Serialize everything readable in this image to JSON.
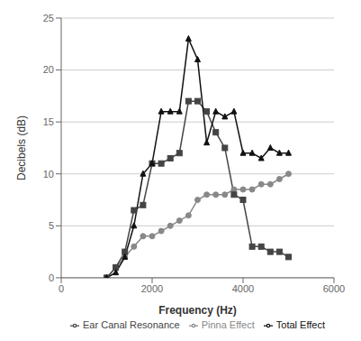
{
  "chart_data": {
    "type": "line",
    "xlabel": "Frequency (Hz)",
    "ylabel": "Decibels (dB)",
    "x": [
      1000,
      1200,
      1400,
      1600,
      1800,
      2000,
      2200,
      2400,
      2600,
      2800,
      3000,
      3200,
      3400,
      3600,
      3800,
      4000,
      4200,
      4400,
      4600,
      4800,
      5000
    ],
    "series": [
      {
        "name": "Pinna Effect",
        "color": "#888888",
        "marker": "circle",
        "values": [
          0,
          1,
          2,
          3,
          4,
          4,
          4.5,
          5,
          5.5,
          6,
          7.5,
          8,
          8,
          8,
          8.5,
          8.5,
          8.5,
          9,
          9,
          9.5,
          10
        ]
      },
      {
        "name": "Ear Canal Resonance",
        "color": "#444444",
        "marker": "square",
        "values": [
          0,
          1,
          2.5,
          6.5,
          7,
          11,
          11,
          11.5,
          12,
          17,
          17,
          16,
          14,
          12.5,
          8,
          7.5,
          3,
          3,
          2.5,
          2.5,
          2
        ]
      },
      {
        "name": "Total Effect",
        "color": "#111111",
        "marker": "triangle",
        "values": [
          0,
          0.5,
          2,
          5,
          10,
          11,
          16,
          16,
          16,
          23,
          21,
          13,
          16,
          15.5,
          16,
          12,
          12,
          11.5,
          12.5,
          12,
          12
        ]
      }
    ],
    "xlim": [
      0,
      6000
    ],
    "ylim": [
      0,
      25
    ],
    "xticks": [
      0,
      2000,
      4000,
      6000
    ],
    "yticks": [
      0,
      5,
      10,
      15,
      20,
      25
    ],
    "grid": "y",
    "legend": "lower right"
  }
}
